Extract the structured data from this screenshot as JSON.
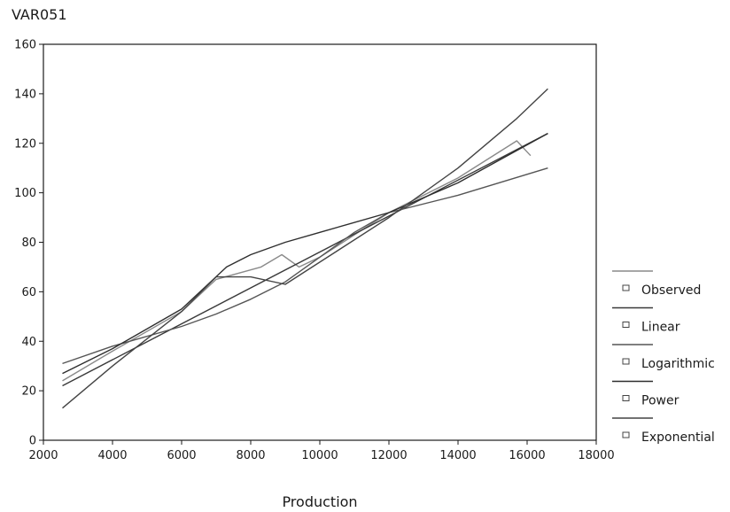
{
  "chart_data": {
    "type": "line",
    "title": "",
    "ylabel": "VAR051",
    "xlabel": "Production",
    "xlim": [
      2000,
      18000
    ],
    "ylim": [
      0,
      160
    ],
    "xticks": [
      "2000",
      "4000",
      "6000",
      "8000",
      "10000",
      "12000",
      "14000",
      "16000",
      "18000"
    ],
    "yticks": [
      "0",
      "20",
      "40",
      "60",
      "80",
      "100",
      "120",
      "140",
      "160"
    ],
    "grid": false,
    "legend_position": "right",
    "series": [
      {
        "name": "Observed",
        "color": "#8a8a8a",
        "points": [
          [
            2550,
            24
          ],
          [
            4000,
            36
          ],
          [
            6000,
            52
          ],
          [
            7000,
            65
          ],
          [
            8300,
            70
          ],
          [
            8900,
            75
          ],
          [
            9400,
            70
          ],
          [
            10000,
            74
          ],
          [
            12000,
            92
          ],
          [
            14000,
            106
          ],
          [
            15700,
            121
          ],
          [
            16100,
            115
          ]
        ]
      },
      {
        "name": "Linear",
        "color": "#3a3a3a",
        "points": [
          [
            2550,
            22
          ],
          [
            16600,
            124
          ]
        ]
      },
      {
        "name": "Logarithmic",
        "color": "#555555",
        "points": [
          [
            2550,
            31
          ],
          [
            4000,
            38
          ],
          [
            6000,
            46
          ],
          [
            7000,
            51
          ],
          [
            8000,
            57
          ],
          [
            9000,
            64
          ],
          [
            10000,
            74
          ],
          [
            11000,
            84
          ],
          [
            12000,
            92
          ],
          [
            14000,
            99
          ],
          [
            16600,
            110
          ]
        ]
      },
      {
        "name": "Power",
        "color": "#2e2e2e",
        "points": [
          [
            2550,
            27
          ],
          [
            4000,
            37
          ],
          [
            6000,
            53
          ],
          [
            7300,
            70
          ],
          [
            8000,
            75
          ],
          [
            9000,
            80
          ],
          [
            10000,
            84
          ],
          [
            12000,
            92
          ],
          [
            14000,
            104
          ],
          [
            16600,
            124
          ]
        ]
      },
      {
        "name": "Exponential",
        "color": "#444444",
        "points": [
          [
            2550,
            13
          ],
          [
            4000,
            30
          ],
          [
            6000,
            52
          ],
          [
            7000,
            66
          ],
          [
            8000,
            66
          ],
          [
            9000,
            63
          ],
          [
            10000,
            72
          ],
          [
            12000,
            90
          ],
          [
            14000,
            110
          ],
          [
            15700,
            130
          ],
          [
            16600,
            142
          ]
        ]
      }
    ]
  }
}
